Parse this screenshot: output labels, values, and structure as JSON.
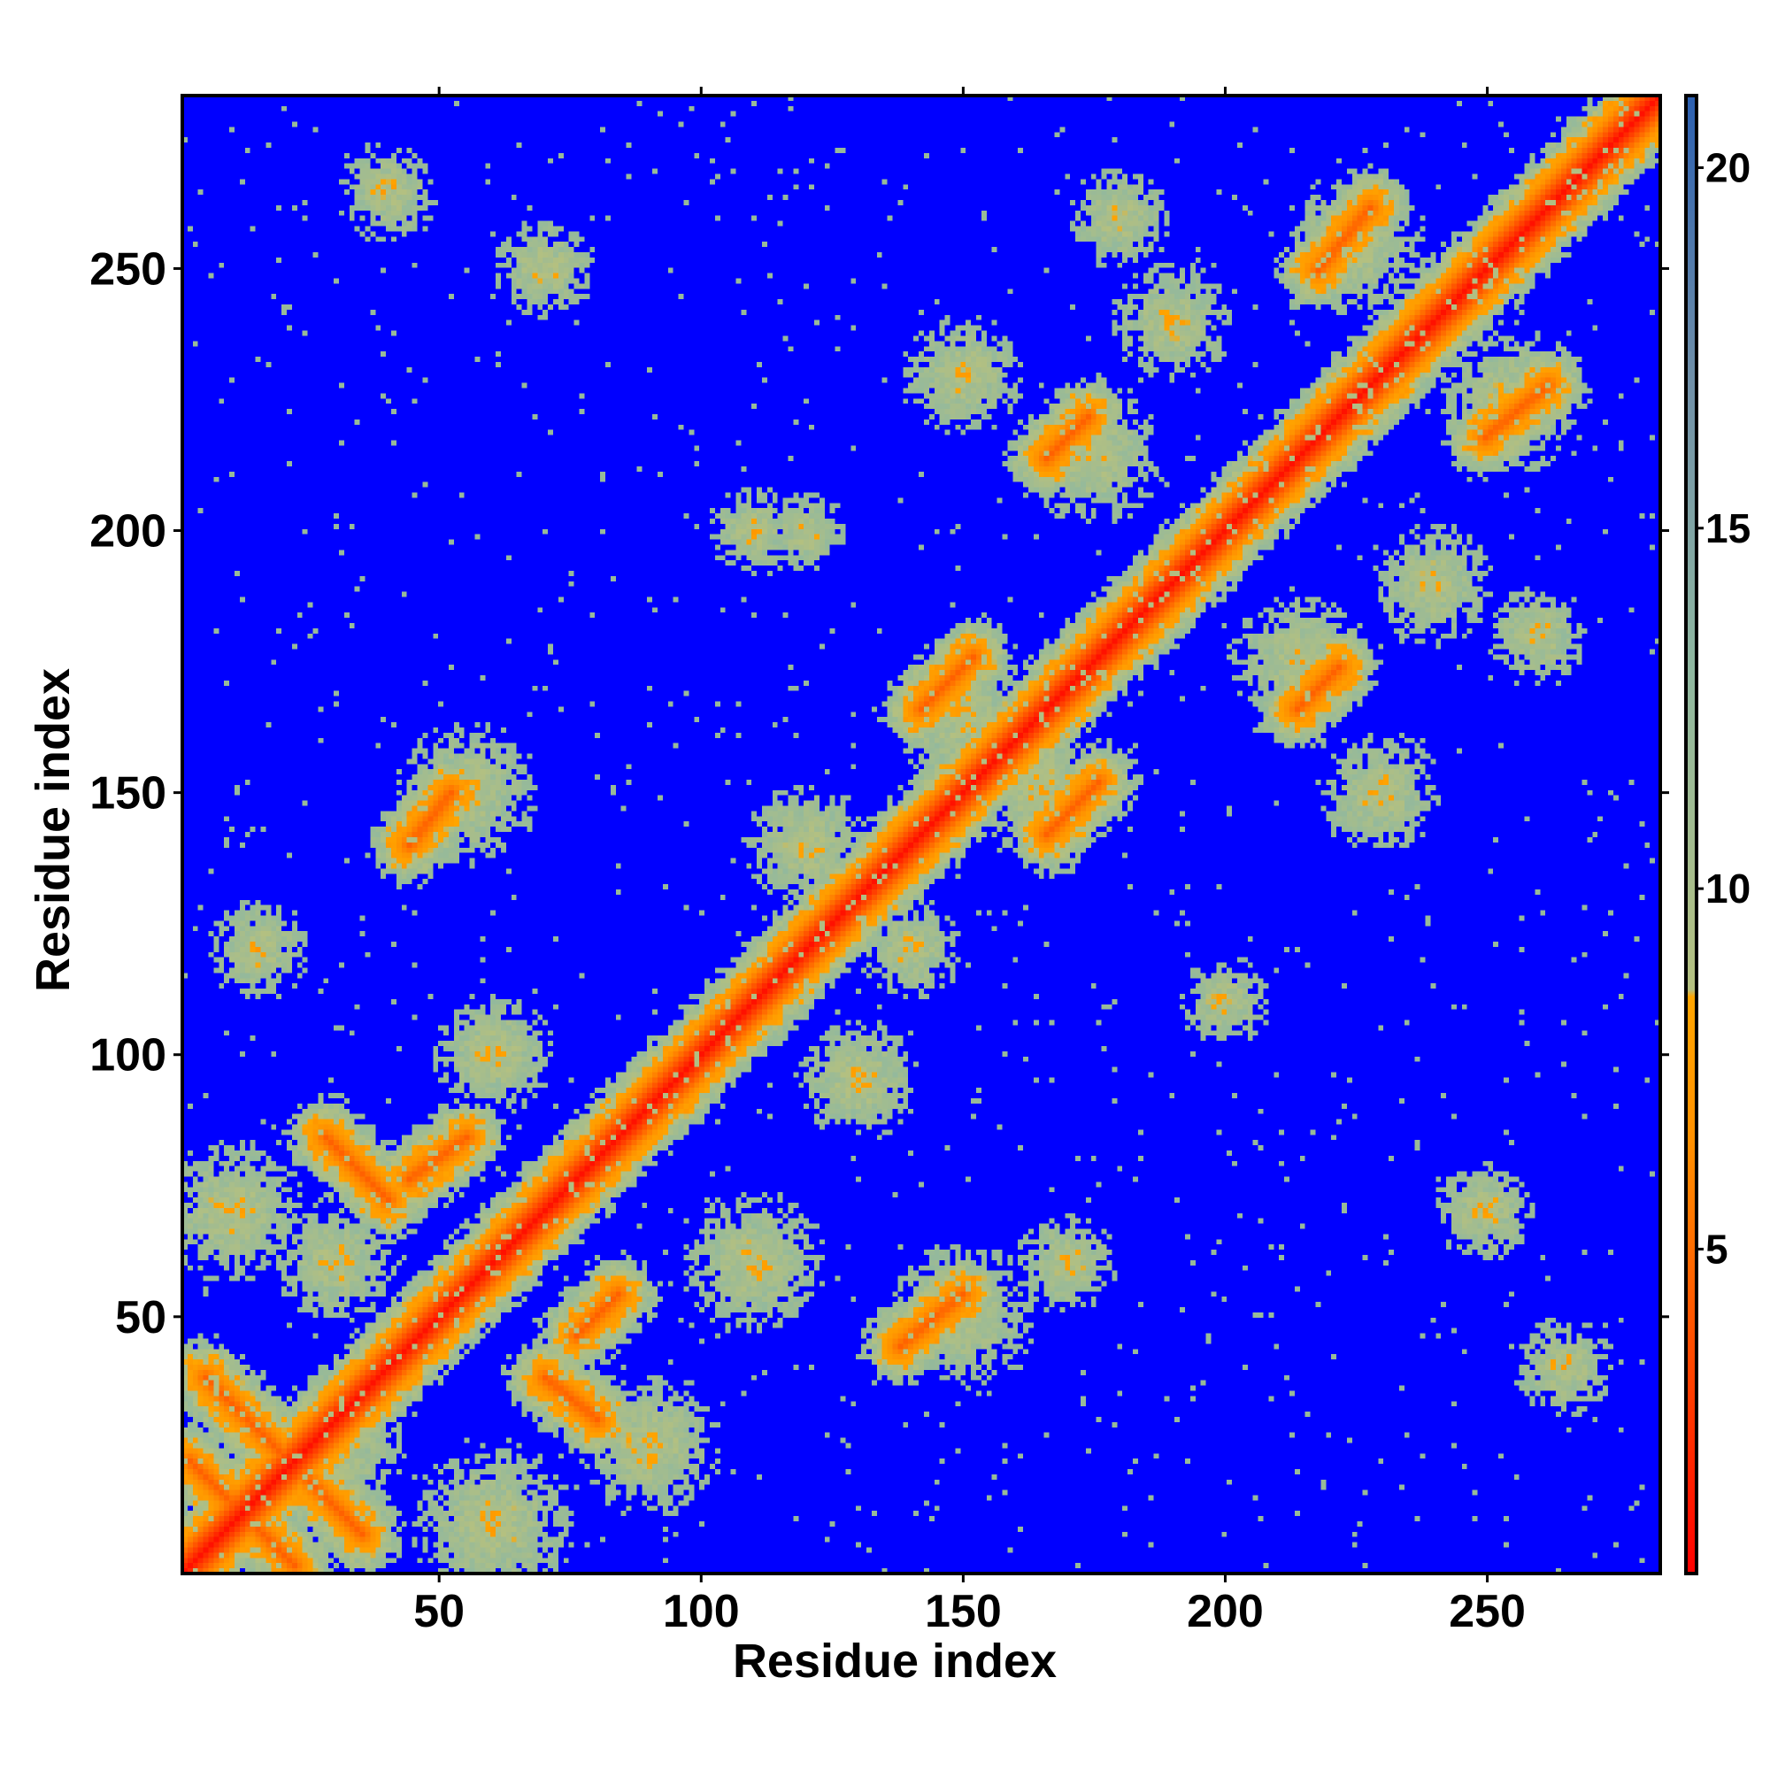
{
  "chart_data": {
    "type": "heatmap",
    "title": "",
    "xlabel": "Residue index",
    "ylabel": "Residue index",
    "n_residues": 283,
    "xlim": [
      1,
      283
    ],
    "ylim": [
      1,
      283
    ],
    "x_ticks": [
      50,
      100,
      150,
      200,
      250
    ],
    "y_ticks": [
      50,
      100,
      150,
      200,
      250
    ],
    "x_tick_labels": [
      "50",
      "100",
      "150",
      "200",
      "250"
    ],
    "y_tick_labels": [
      "50",
      "100",
      "150",
      "200",
      "250"
    ],
    "colorbar": {
      "range": [
        0.5,
        21
      ],
      "ticks": [
        5,
        10,
        15,
        20
      ],
      "tick_labels": [
        "5",
        "10",
        "15",
        "20"
      ],
      "stops": [
        {
          "value": 0.5,
          "color": "#ff0000"
        },
        {
          "value": 4,
          "color": "#ff5500"
        },
        {
          "value": 6.5,
          "color": "#ff9000"
        },
        {
          "value": 8.5,
          "color": "#ffa500"
        },
        {
          "value": 8.6,
          "color": "#b4c080"
        },
        {
          "value": 13,
          "color": "#8fb8a0"
        },
        {
          "value": 17,
          "color": "#7090a8"
        },
        {
          "value": 21,
          "color": "#2b5fb0"
        }
      ],
      "background_color": "#0000ff"
    },
    "diagonal": "symmetric contact map",
    "contact_segments": [
      {
        "x": [
          5,
          35
        ],
        "y": [
          38,
          8
        ],
        "kind": "antiparallel"
      },
      {
        "x": [
          2,
          22
        ],
        "y": [
          22,
          2
        ],
        "kind": "antiparallel"
      },
      {
        "x": [
          28,
          40
        ],
        "y": [
          84,
          72
        ],
        "kind": "antiparallel"
      },
      {
        "x": [
          44,
          55
        ],
        "y": [
          76,
          84
        ],
        "kind": "parallel"
      },
      {
        "x": [
          70,
          80
        ],
        "y": [
          38,
          30
        ],
        "kind": "antiparallel"
      },
      {
        "x": [
          76,
          84
        ],
        "y": [
          46,
          54
        ],
        "kind": "parallel"
      },
      {
        "x": [
          44,
          52
        ],
        "y": [
          140,
          150
        ],
        "kind": "parallel"
      },
      {
        "x": [
          138,
          150
        ],
        "y": [
          44,
          54
        ],
        "kind": "parallel"
      },
      {
        "x": [
          142,
          152
        ],
        "y": [
          166,
          176
        ],
        "kind": "parallel"
      },
      {
        "x": [
          166,
          176
        ],
        "y": [
          142,
          152
        ],
        "kind": "parallel"
      },
      {
        "x": [
          166,
          174
        ],
        "y": [
          214,
          222
        ],
        "kind": "parallel"
      },
      {
        "x": [
          214,
          222
        ],
        "y": [
          166,
          174
        ],
        "kind": "parallel"
      },
      {
        "x": [
          218,
          228
        ],
        "y": [
          250,
          262
        ],
        "kind": "parallel"
      },
      {
        "x": [
          250,
          262
        ],
        "y": [
          218,
          228
        ],
        "kind": "parallel"
      }
    ]
  }
}
